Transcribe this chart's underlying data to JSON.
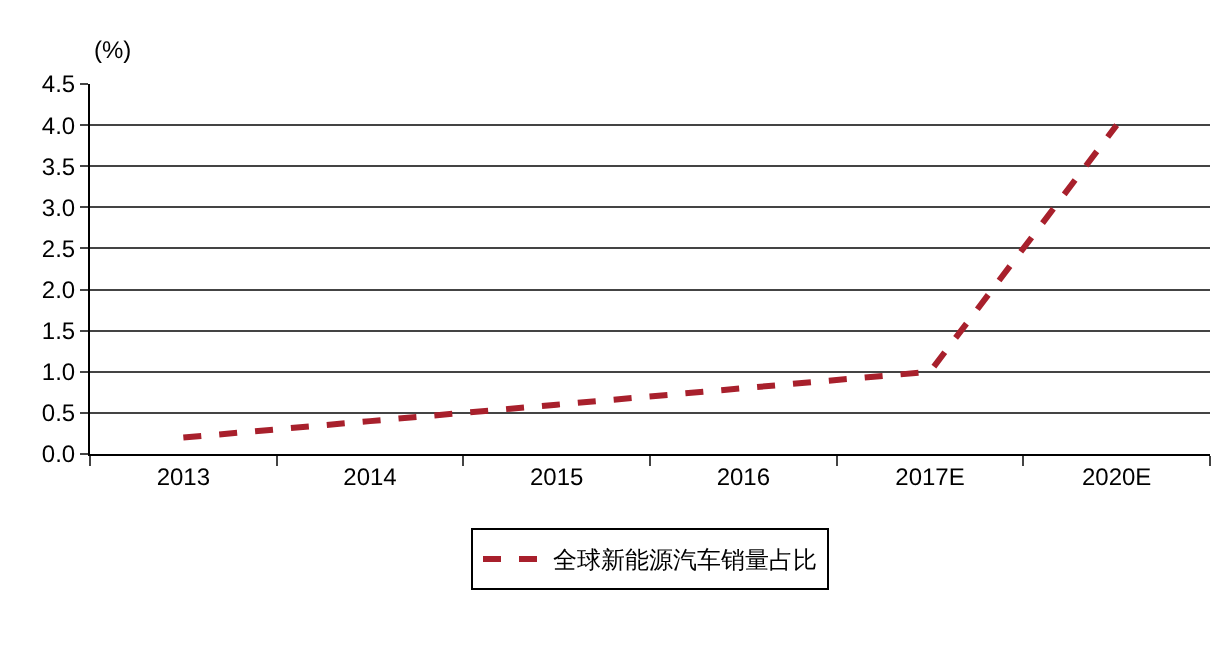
{
  "chart_data": {
    "type": "line",
    "ylabel": "(%)",
    "categories": [
      "2013",
      "2014",
      "2015",
      "2016",
      "2017E",
      "2020E"
    ],
    "series": [
      {
        "name": "全球新能源汽车销量占比",
        "color": "#a8202c",
        "values": [
          0.2,
          0.4,
          0.6,
          0.8,
          1.0,
          4.0
        ]
      }
    ],
    "ylim": [
      0,
      4.5
    ],
    "yticks": [
      {
        "value": 0,
        "label": "0.0"
      },
      0.5,
      {
        "value": 1,
        "label": "1.0"
      },
      1.5,
      {
        "value": 2,
        "label": "2.0"
      },
      2.5,
      {
        "value": 3,
        "label": "3.0"
      },
      3.5,
      {
        "value": 4,
        "label": "4.0"
      },
      4.5
    ],
    "grid": "y",
    "legend": "bottom",
    "line_style": "dashed",
    "marker": "none"
  }
}
